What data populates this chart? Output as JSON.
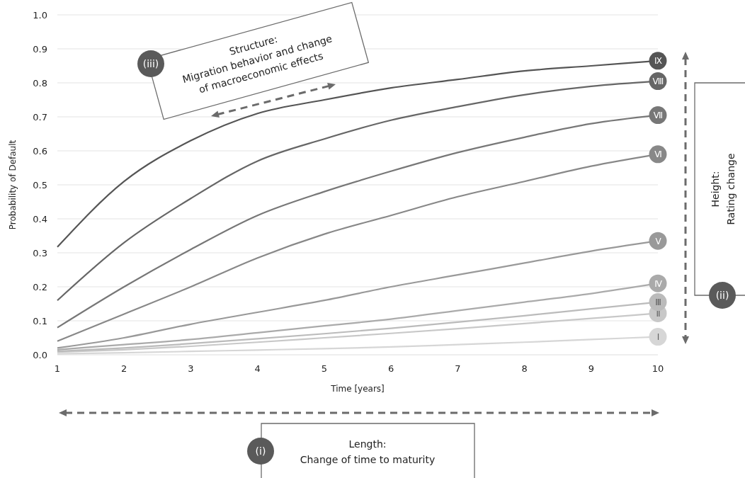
{
  "chart_data": {
    "type": "line",
    "xlabel": "Time [years]",
    "ylabel": "Probability of Default",
    "x": [
      1,
      2,
      3,
      4,
      5,
      6,
      7,
      8,
      9,
      10
    ],
    "xlim": [
      1,
      10
    ],
    "xticks": [
      1,
      2,
      3,
      4,
      5,
      6,
      7,
      8,
      9,
      10
    ],
    "ylim": [
      0,
      1
    ],
    "yticks": [
      {
        "value": 0,
        "label": "0.0"
      },
      {
        "value": 0.1,
        "label": "0.1"
      },
      {
        "value": 0.2,
        "label": "0.2"
      },
      {
        "value": 0.3,
        "label": "0.3"
      },
      {
        "value": 0.4,
        "label": "0.4"
      },
      {
        "value": 0.5,
        "label": "0.5"
      },
      {
        "value": 0.6,
        "label": "0.6"
      },
      {
        "value": 0.7,
        "label": "0.7"
      },
      {
        "value": 0.8,
        "label": "0.8"
      },
      {
        "value": 0.9,
        "label": "0.9"
      },
      {
        "value": 1,
        "label": "1.0"
      }
    ],
    "grid": "y",
    "marker": "none",
    "line_style": "solid",
    "series": [
      {
        "name": "I",
        "color": "#d6d6d6",
        "values": [
          0.003,
          0.006,
          0.01,
          0.014,
          0.018,
          0.023,
          0.03,
          0.037,
          0.045,
          0.053
        ]
      },
      {
        "name": "II",
        "color": "#c8c8c8",
        "values": [
          0.008,
          0.015,
          0.025,
          0.037,
          0.05,
          0.063,
          0.077,
          0.092,
          0.107,
          0.122
        ]
      },
      {
        "name": "III",
        "color": "#bbbbbb",
        "values": [
          0.01,
          0.02,
          0.033,
          0.047,
          0.062,
          0.078,
          0.096,
          0.115,
          0.135,
          0.155
        ]
      },
      {
        "name": "IV",
        "color": "#aaaaaa",
        "values": [
          0.015,
          0.03,
          0.045,
          0.065,
          0.085,
          0.105,
          0.13,
          0.155,
          0.18,
          0.21
        ]
      },
      {
        "name": "V",
        "color": "#999999",
        "values": [
          0.02,
          0.05,
          0.09,
          0.125,
          0.16,
          0.2,
          0.235,
          0.27,
          0.305,
          0.335
        ]
      },
      {
        "name": "VI",
        "color": "#888888",
        "values": [
          0.04,
          0.12,
          0.2,
          0.285,
          0.355,
          0.41,
          0.465,
          0.51,
          0.555,
          0.59
        ]
      },
      {
        "name": "VII",
        "color": "#777777",
        "values": [
          0.08,
          0.2,
          0.31,
          0.41,
          0.48,
          0.54,
          0.595,
          0.64,
          0.68,
          0.705
        ]
      },
      {
        "name": "VIII",
        "color": "#666666",
        "values": [
          0.16,
          0.33,
          0.46,
          0.57,
          0.635,
          0.69,
          0.73,
          0.765,
          0.79,
          0.805
        ]
      },
      {
        "name": "IX",
        "color": "#555555",
        "values": [
          0.317,
          0.51,
          0.63,
          0.71,
          0.75,
          0.785,
          0.81,
          0.835,
          0.85,
          0.865
        ]
      }
    ],
    "annotations": [
      "(iii)",
      "Structure:\nMigration behavior and change\nof macroeconomic effects",
      "(ii)",
      "Height:\nRating change",
      "(i)",
      "Length:\nChange of time to maturity"
    ]
  }
}
